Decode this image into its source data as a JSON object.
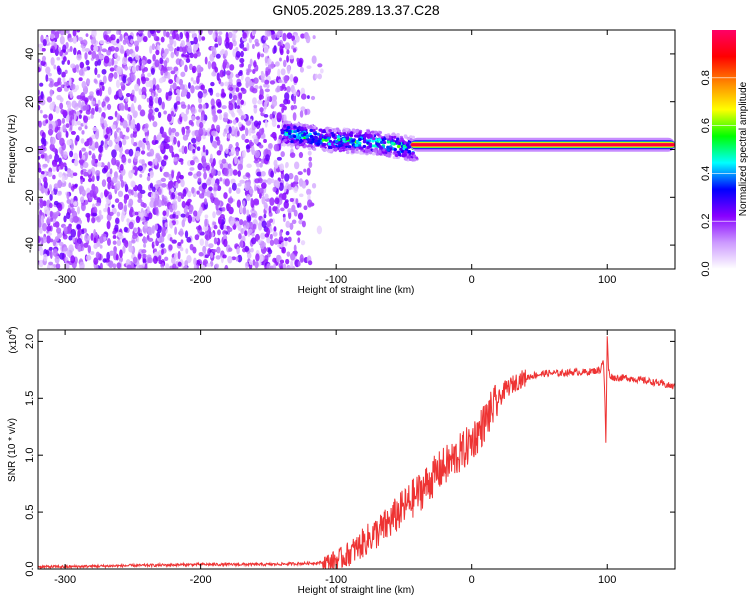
{
  "page": {
    "title": "GN05.2025.289.13.37.C28"
  },
  "chart_data": [
    {
      "type": "heatmap",
      "title": "GN05.2025.289.13.37.C28",
      "xlabel": "Height of straight line (km)",
      "ylabel": "Frequency (Hz)",
      "xlim": [
        -320,
        150
      ],
      "ylim": [
        -50,
        50
      ],
      "xticks": [
        -300,
        -200,
        -100,
        0,
        100
      ],
      "yticks": [
        -40,
        -20,
        0,
        20,
        40
      ],
      "colorbar": {
        "label": "Normalized spectral amplitude",
        "ticks": [
          "0.0",
          "0.2",
          "0.4",
          "0.6",
          "0.8"
        ],
        "tick_values": [
          0.0,
          0.2,
          0.4,
          0.6,
          0.8
        ],
        "range": [
          0,
          1
        ],
        "colors": [
          "#ffffff",
          "#cc99ff",
          "#8800ff",
          "#0000ff",
          "#00ffff",
          "#00ff00",
          "#ffff00",
          "#ff8800",
          "#ff0000",
          "#ff0066"
        ]
      },
      "features": [
        {
          "name": "noise-scatter",
          "x_range": [
            -320,
            -110
          ],
          "freq_range": [
            -50,
            50
          ],
          "amplitude": 0.15
        },
        {
          "name": "spectral-band-transition",
          "x_range": [
            -140,
            -40
          ],
          "center_freq": [
            7,
            4,
            3,
            0
          ],
          "amplitude": 0.45
        },
        {
          "name": "spectral-band-peak",
          "x_range": [
            -45,
            150
          ],
          "center_freq": 2,
          "amplitude": 0.95
        }
      ]
    },
    {
      "type": "line",
      "xlabel": "Height of straight line (km)",
      "ylabel": "SNR (10 * v/v)",
      "multiplier": "(x10",
      "multiplier_exp": "4",
      "xlim": [
        -320,
        150
      ],
      "ylim": [
        0,
        2.1
      ],
      "xticks": [
        -300,
        -200,
        -100,
        0,
        100
      ],
      "yticks": [
        "0.0",
        "0.5",
        "1.0",
        "1.5",
        "2.0"
      ],
      "ytick_values": [
        0,
        0.5,
        1.0,
        1.5,
        2.0
      ],
      "line_color": "#ee3333",
      "series": [
        {
          "name": "SNR",
          "x": [
            -320,
            -300,
            -250,
            -200,
            -150,
            -120,
            -105,
            -95,
            -85,
            -75,
            -65,
            -55,
            -45,
            -35,
            -25,
            -15,
            -5,
            5,
            15,
            25,
            35,
            45,
            55,
            65,
            75,
            85,
            90,
            95,
            97,
            98,
            99,
            100,
            101,
            102,
            105,
            115,
            125,
            135,
            150
          ],
          "y": [
            0.02,
            0.02,
            0.03,
            0.04,
            0.04,
            0.05,
            0.06,
            0.1,
            0.18,
            0.28,
            0.36,
            0.48,
            0.6,
            0.72,
            0.85,
            0.95,
            1.05,
            1.2,
            1.4,
            1.58,
            1.66,
            1.7,
            1.72,
            1.72,
            1.73,
            1.73,
            1.74,
            1.75,
            1.85,
            1.6,
            1.1,
            2.05,
            1.75,
            1.7,
            1.68,
            1.68,
            1.66,
            1.64,
            1.6
          ]
        }
      ]
    }
  ]
}
